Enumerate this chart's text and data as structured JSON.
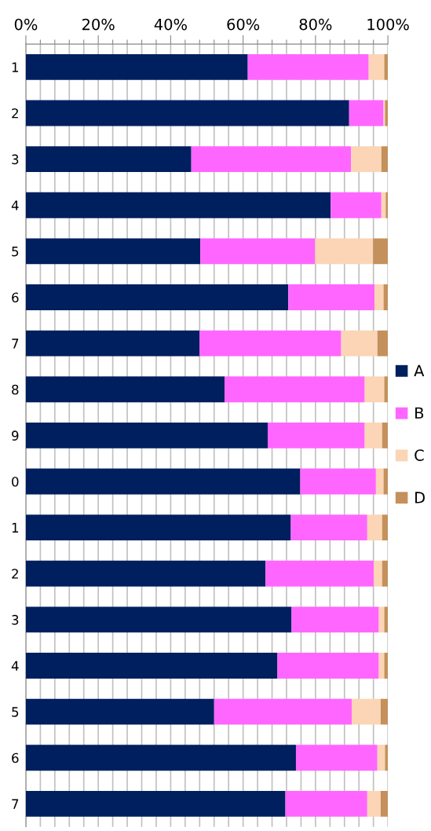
{
  "chart_data": {
    "type": "bar",
    "orientation": "horizontal",
    "stacked": true,
    "categories": [
      "1",
      "2",
      "3",
      "4",
      "5",
      "6",
      "7",
      "8",
      "9",
      "0",
      "1",
      "2",
      "3",
      "4",
      "5",
      "6",
      "7"
    ],
    "series": [
      {
        "name": "A",
        "color": "#001f5f",
        "values": [
          61.3,
          89.3,
          45.7,
          84.2,
          48.2,
          72.5,
          48.0,
          54.9,
          66.8,
          75.8,
          73.2,
          66.2,
          73.4,
          69.5,
          52.0,
          74.6,
          71.7
        ]
      },
      {
        "name": "B",
        "color": "#ff66ff",
        "values": [
          33.4,
          9.5,
          44.1,
          14.0,
          31.7,
          23.8,
          39.1,
          38.7,
          26.8,
          20.9,
          21.1,
          29.9,
          24.1,
          28.0,
          38.0,
          22.5,
          22.6
        ]
      },
      {
        "name": "C",
        "color": "#fbd5b5",
        "values": [
          4.3,
          0.4,
          8.4,
          1.2,
          16.0,
          2.5,
          10.0,
          5.4,
          4.8,
          2.1,
          4.1,
          2.3,
          1.5,
          1.5,
          8.0,
          2.1,
          3.7
        ]
      },
      {
        "name": "D",
        "color": "#c4915c",
        "values": [
          1.0,
          0.8,
          1.8,
          0.6,
          4.1,
          1.2,
          2.9,
          1.0,
          1.6,
          1.2,
          1.6,
          1.6,
          1.0,
          1.0,
          2.0,
          0.8,
          2.0
        ]
      }
    ],
    "xlim": [
      0,
      100
    ],
    "xticks": [
      {
        "value": 0,
        "label": "0%"
      },
      {
        "value": 4,
        "label": null
      },
      {
        "value": 8,
        "label": null
      },
      {
        "value": 12,
        "label": null
      },
      {
        "value": 16,
        "label": null
      },
      {
        "value": 20,
        "label": "20%"
      },
      {
        "value": 24,
        "label": null
      },
      {
        "value": 28,
        "label": null
      },
      {
        "value": 32,
        "label": null
      },
      {
        "value": 36,
        "label": null
      },
      {
        "value": 40,
        "label": "40%"
      },
      {
        "value": 44,
        "label": null
      },
      {
        "value": 48,
        "label": null
      },
      {
        "value": 52,
        "label": null
      },
      {
        "value": 56,
        "label": null
      },
      {
        "value": 60,
        "label": "60%"
      },
      {
        "value": 64,
        "label": null
      },
      {
        "value": 68,
        "label": null
      },
      {
        "value": 72,
        "label": null
      },
      {
        "value": 76,
        "label": null
      },
      {
        "value": 80,
        "label": "80%"
      },
      {
        "value": 84,
        "label": null
      },
      {
        "value": 88,
        "label": null
      },
      {
        "value": 92,
        "label": null
      },
      {
        "value": 96,
        "label": null
      },
      {
        "value": 100,
        "label": "100%"
      }
    ],
    "grid": "x",
    "legend": "right"
  }
}
